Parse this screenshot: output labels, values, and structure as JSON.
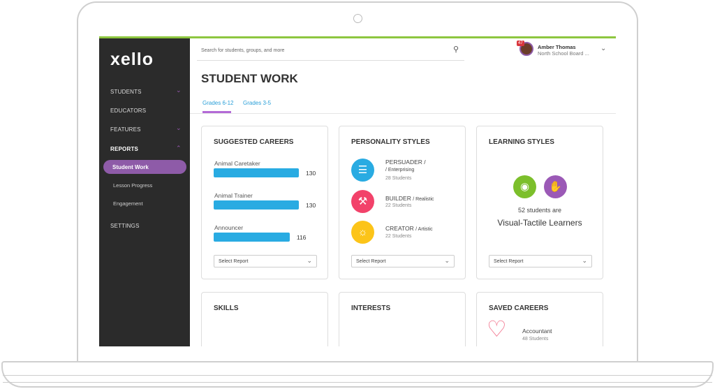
{
  "app": {
    "logo": "xello"
  },
  "search": {
    "placeholder": "Search for students, groups, and more",
    "icon": "search-icon"
  },
  "user": {
    "name": "Amber Thomas",
    "org": "North School Board ...",
    "badge": "47"
  },
  "sidebar": {
    "items": [
      {
        "label": "STUDENTS"
      },
      {
        "label": "EDUCATORS"
      },
      {
        "label": "FEATURES"
      },
      {
        "label": "REPORTS"
      },
      {
        "label": "SETTINGS"
      }
    ],
    "sub": [
      {
        "label": "Student Work"
      },
      {
        "label": "Lesson Progress"
      },
      {
        "label": "Engagement"
      }
    ]
  },
  "page": {
    "title": "STUDENT WORK",
    "tabs": [
      {
        "label": "Grades 6-12"
      },
      {
        "label": "Grades 3-5"
      }
    ]
  },
  "colors": {
    "accent": "#8e5ba8",
    "bar": "#29abe2",
    "topline": "#8dc63f"
  },
  "cards": {
    "suggested": {
      "title": "SUGGESTED CAREERS",
      "select": "Select Report",
      "items": [
        {
          "label": "Animal Caretaker",
          "value": "130",
          "n": 130
        },
        {
          "label": "Animal Trainer",
          "value": "130",
          "n": 130
        },
        {
          "label": "Announcer",
          "value": "116",
          "n": 116
        }
      ]
    },
    "personality": {
      "title": "PERSONALITY STYLES",
      "select": "Select Report",
      "items": [
        {
          "name": "PERSUADER",
          "type": "/ Enterprising",
          "count": "28 Students",
          "color": "#29abe2",
          "icon": "speech-bubble-icon"
        },
        {
          "name": "BUILDER",
          "type": "/ Realistic",
          "count": "22 Students",
          "color": "#f2426a",
          "icon": "hammer-icon"
        },
        {
          "name": "CREATOR",
          "type": "/ Artistic",
          "count": "22 Students",
          "color": "#fcc419",
          "icon": "lightbulb-icon"
        }
      ]
    },
    "learning": {
      "title": "LEARNING STYLES",
      "select": "Select Report",
      "line1": "52 students are",
      "line2": "Visual-Tactile Learners",
      "colors": [
        "#7cbf2b",
        "#9b59b6"
      ]
    },
    "skills": {
      "title": "SKILLS"
    },
    "interests": {
      "title": "INTERESTS"
    },
    "saved": {
      "title": "SAVED CAREERS",
      "item": "Accountant",
      "count": "48 Students"
    }
  }
}
